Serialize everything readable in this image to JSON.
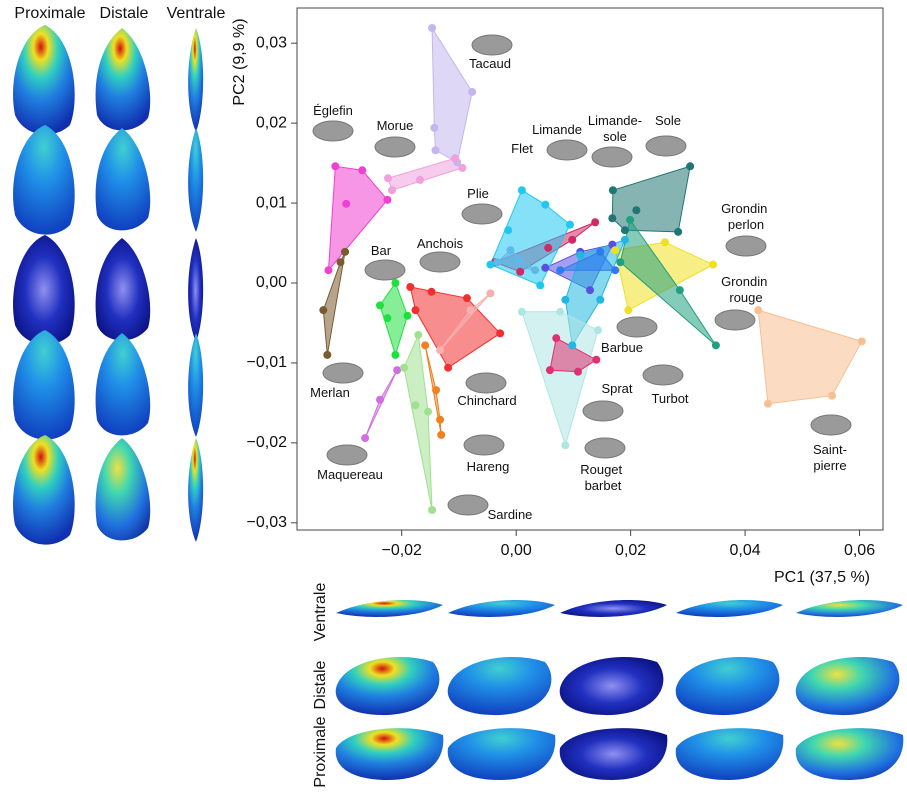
{
  "chart_data": {
    "type": "scatter",
    "x_label": "PC1 (37,5 %)",
    "y_label": "PC2 (9,9 %)",
    "xlim": [
      -0.0383,
      0.0641
    ],
    "ylim": [
      -0.0309,
      0.0344
    ],
    "xticks": [
      {
        "value": -0.02,
        "label": "−0,02"
      },
      {
        "value": 0,
        "label": "0,00"
      },
      {
        "value": 0.02,
        "label": "0,02"
      },
      {
        "value": 0.04,
        "label": "0,04"
      },
      {
        "value": 0.06,
        "label": "0,06"
      }
    ],
    "yticks": [
      {
        "value": 0.03,
        "label": "0,03"
      },
      {
        "value": 0.02,
        "label": "0,02"
      },
      {
        "value": 0.01,
        "label": "0,01"
      },
      {
        "value": 0,
        "label": "0,00"
      },
      {
        "value": -0.01,
        "label": "−0,01"
      },
      {
        "value": -0.02,
        "label": "−0,02"
      },
      {
        "value": -0.03,
        "label": "−0,03"
      }
    ],
    "series": [
      {
        "name": "Tacaud",
        "color": "#c4b6ee",
        "x": [
          -0.0147,
          -0.0077,
          -0.0143,
          -0.0141,
          -0.0103
        ],
        "values": [
          0.0319,
          0.0239,
          0.0194,
          0.0166,
          0.0151
        ]
      },
      {
        "name": "Églefin",
        "color": "#f040d0",
        "x": [
          -0.0316,
          -0.0269,
          -0.0225,
          -0.0297,
          -0.0328
        ],
        "values": [
          0.0146,
          0.0141,
          0.0104,
          0.0099,
          0.0016
        ]
      },
      {
        "name": "Morue",
        "color": "#f0a0dc",
        "x": [
          -0.0224,
          -0.0107,
          -0.0094,
          -0.0217,
          -0.0168
        ],
        "values": [
          0.0131,
          0.0156,
          0.0144,
          0.0116,
          0.0129
        ]
      },
      {
        "name": "Limande-sole",
        "color": "#5a50e0",
        "x": [
          0.0051,
          0.0112,
          0.0168,
          0.0129
        ],
        "values": [
          0.0019,
          0.0039,
          0.0048,
          -0.0009
        ]
      },
      {
        "name": "Limande",
        "color": "#d02a64",
        "x": [
          0.0138,
          0.0098,
          0.0056,
          0.0007,
          -0.0037
        ],
        "values": [
          0.0076,
          0.0054,
          0.0044,
          0.0014,
          0.0026
        ]
      },
      {
        "name": "Sole",
        "color": "#207672",
        "x": [
          0.0169,
          0.0304,
          0.0283,
          0.021,
          0.0168,
          0.019
        ],
        "values": [
          0.0116,
          0.0146,
          0.0064,
          0.0091,
          0.0081,
          0.0066
        ]
      },
      {
        "name": "Flet",
        "color": "#20c8f0",
        "x": [
          0.001,
          0.0051,
          0.0094,
          0.0042,
          -0.0045,
          -0.0014
        ],
        "values": [
          0.0116,
          0.0098,
          0.0073,
          -0.0003,
          0.0023,
          0.0066
        ]
      },
      {
        "name": "Plie",
        "color": "#60b8e8",
        "x": [
          -0.0033,
          0.0003,
          0.0033,
          -0.001
        ],
        "values": [
          0.0026,
          0.0029,
          0.0016,
          0.0041
        ]
      },
      {
        "name": "Grondin perlon",
        "color": "#f0e020",
        "x": [
          0.0173,
          0.026,
          0.0344,
          0.0196
        ],
        "values": [
          0.0041,
          0.0051,
          0.0023,
          -0.0034
        ]
      },
      {
        "name": "Anchois",
        "color": "#f03030",
        "x": [
          -0.0185,
          -0.0148,
          -0.0086,
          -0.0028,
          -0.0119,
          -0.0176
        ],
        "values": [
          -0.0005,
          -0.0011,
          -0.0019,
          -0.0063,
          -0.0106,
          -0.0034
        ]
      },
      {
        "name": "Bar",
        "color": "#20e040",
        "x": [
          -0.0238,
          -0.0211,
          -0.019,
          -0.0211,
          -0.0225
        ],
        "values": [
          -0.0028,
          0,
          -0.0041,
          -0.009,
          -0.0044
        ]
      },
      {
        "name": "Grondin rouge",
        "color": "#20a080",
        "x": [
          0.0199,
          0.0286,
          0.0349,
          0.0182
        ],
        "values": [
          0.0079,
          -0.0009,
          -0.0078,
          0.0026
        ]
      },
      {
        "name": "Barbue",
        "color": "#20b8e0",
        "x": [
          0.0112,
          0.019,
          0.0147,
          0.0098,
          0.0086
        ],
        "values": [
          0.0035,
          0.0054,
          -0.0021,
          -0.0078,
          -0.0021
        ]
      },
      {
        "name": "Merlan",
        "color": "#7a5a30",
        "x": [
          -0.0299,
          -0.0307,
          -0.0337,
          -0.033
        ],
        "values": [
          0.0039,
          0.0026,
          -0.0034,
          -0.009
        ]
      },
      {
        "name": "Chinchard",
        "color": "#f6b0b0",
        "x": [
          -0.0045,
          -0.008,
          -0.0133
        ],
        "values": [
          -0.0013,
          -0.0034,
          -0.0084
        ]
      },
      {
        "name": "Turbot",
        "color": "#2c7cf0",
        "x": [
          0.0077,
          0.0147,
          0.0173
        ],
        "values": [
          0.0016,
          0.0039,
          0.0016
        ]
      },
      {
        "name": "Sprat",
        "color": "#aee6e6",
        "x": [
          0.001,
          0.0077,
          0.0143,
          0.0086
        ],
        "values": [
          -0.0036,
          -0.0036,
          -0.0059,
          -0.0203
        ]
      },
      {
        "name": "Maquereau",
        "color": "#d070e0",
        "x": [
          -0.0264,
          -0.0208,
          -0.0238
        ],
        "values": [
          -0.0194,
          -0.0109,
          -0.0146
        ]
      },
      {
        "name": "Hareng",
        "color": "#f08020",
        "x": [
          -0.0133,
          -0.0131,
          -0.014,
          -0.0159
        ],
        "values": [
          -0.0171,
          -0.019,
          -0.0134,
          -0.0078
        ]
      },
      {
        "name": "Rouget barbet",
        "color": "#e03070",
        "x": [
          0.007,
          0.014,
          0.0108,
          0.0059
        ],
        "values": [
          -0.0069,
          -0.0096,
          -0.0111,
          -0.0109
        ]
      },
      {
        "name": "Saint-pierre",
        "color": "#f8c090",
        "x": [
          0.0423,
          0.0604,
          0.0552,
          0.044
        ],
        "values": [
          -0.0034,
          -0.0073,
          -0.0141,
          -0.0151
        ]
      },
      {
        "name": "Sardine",
        "color": "#a0e090",
        "x": [
          -0.0196,
          -0.0176,
          -0.0154,
          -0.0147,
          -0.0171
        ],
        "values": [
          -0.0106,
          -0.0153,
          -0.0161,
          -0.0284,
          -0.0065
        ]
      }
    ]
  },
  "views": {
    "columns": [
      "Proximale",
      "Distale",
      "Ventrale"
    ],
    "rows": [
      "Ventrale",
      "Distale",
      "Proximale"
    ]
  }
}
